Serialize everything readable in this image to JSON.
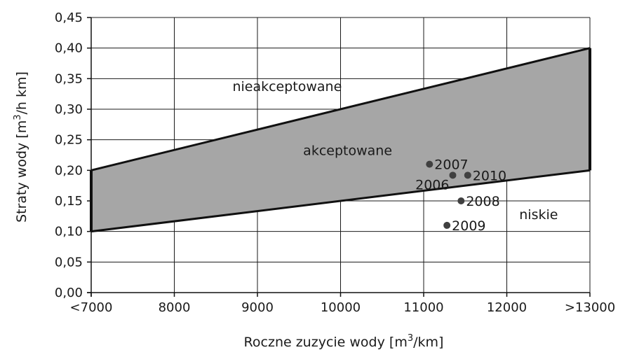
{
  "chart_data": {
    "type": "scatter",
    "xlabel": "Roczne zuzycie wody [m",
    "xlabel_sup": "3",
    "xlabel_tail": "/km]",
    "ylabel": "Straty wody [m",
    "ylabel_sup": "3",
    "ylabel_tail": "/h km]",
    "x_ticks": [
      7000,
      8000,
      9000,
      10000,
      11000,
      12000,
      13000
    ],
    "x_tick_labels": [
      "<7000",
      "8000",
      "9000",
      "10000",
      "11000",
      "12000",
      ">13000"
    ],
    "y_ticks": [
      0.0,
      0.05,
      0.1,
      0.15,
      0.2,
      0.25,
      0.3,
      0.35,
      0.4,
      0.45
    ],
    "y_tick_labels": [
      "0,00",
      "0,05",
      "0,10",
      "0,15",
      "0,20",
      "0,25",
      "0,30",
      "0,35",
      "0,40",
      "0,45"
    ],
    "xlim": [
      7000,
      13000
    ],
    "ylim": [
      0,
      0.45
    ],
    "grid": true,
    "band": {
      "upper": [
        [
          7000,
          0.2
        ],
        [
          13000,
          0.4
        ]
      ],
      "lower": [
        [
          7000,
          0.1
        ],
        [
          13000,
          0.2
        ]
      ],
      "fill": "#a6a6a6"
    },
    "regions": [
      {
        "label": "nieakceptowane",
        "x": 8700,
        "y": 0.33
      },
      {
        "label": "akceptowane",
        "x": 9550,
        "y": 0.225
      },
      {
        "label": "niskie",
        "x": 12150,
        "y": 0.12
      }
    ],
    "points": [
      {
        "label": "2007",
        "x": 11070,
        "y": 0.21,
        "label_side": "right"
      },
      {
        "label": "2006",
        "x": 11350,
        "y": 0.192,
        "label_side": "left-below"
      },
      {
        "label": "2010",
        "x": 11530,
        "y": 0.192,
        "label_side": "right"
      },
      {
        "label": "2008",
        "x": 11450,
        "y": 0.15,
        "label_side": "right"
      },
      {
        "label": "2009",
        "x": 11280,
        "y": 0.11,
        "label_side": "right"
      }
    ],
    "point_color": "#404040"
  }
}
